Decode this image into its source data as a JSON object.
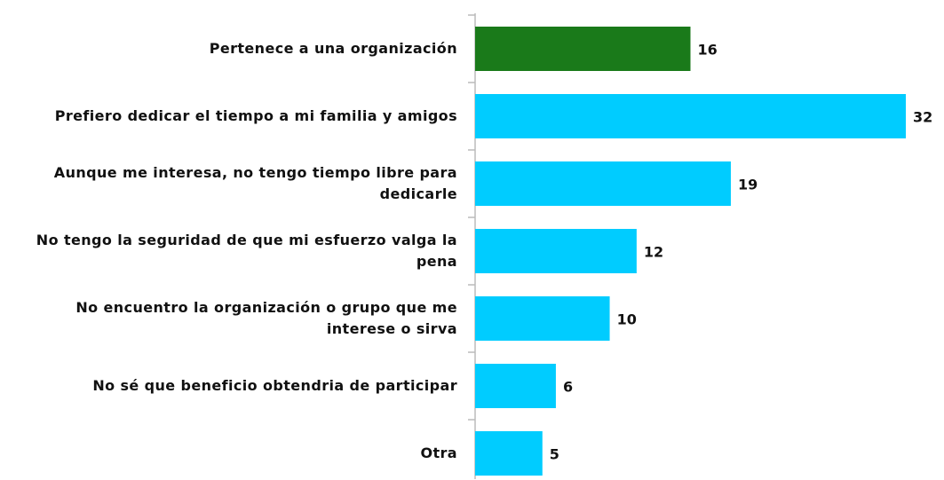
{
  "chart_data": {
    "type": "bar",
    "orientation": "horizontal",
    "categories": [
      "Pertenece a una organización",
      "Prefiero dedicar el tiempo a mi familia y amigos",
      "Aunque me interesa, no tengo tiempo libre para dedicarle",
      "No tengo la seguridad de que mi esfuerzo valga la pena",
      "No encuentro la organización o grupo que me interese o sirva",
      "No sé que beneficio obtendria de participar",
      "Otra"
    ],
    "values": [
      16,
      32,
      19,
      12,
      10,
      6,
      5
    ],
    "colors": [
      "#1a7a1a",
      "#00ccff",
      "#00ccff",
      "#00ccff",
      "#00ccff",
      "#00ccff",
      "#00ccff"
    ]
  }
}
